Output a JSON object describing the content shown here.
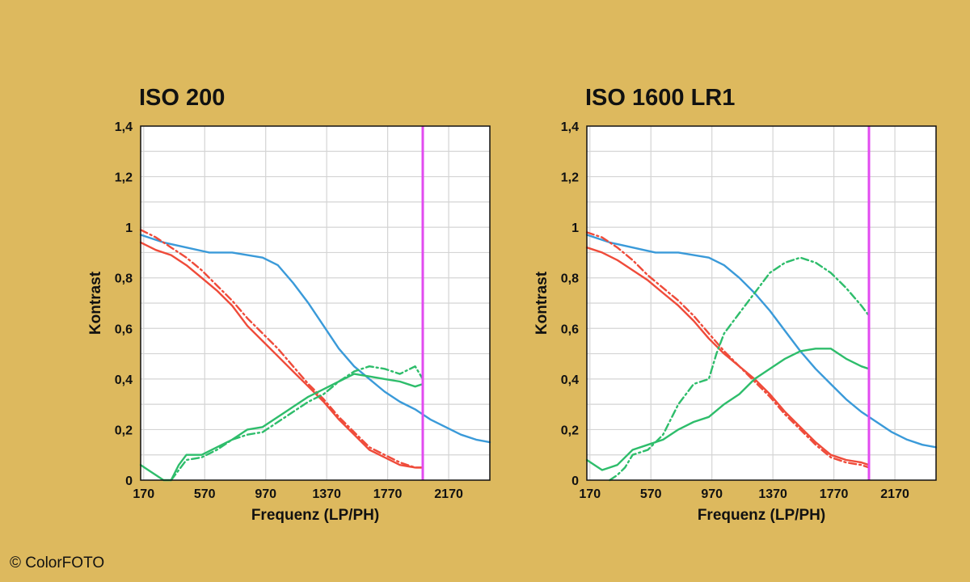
{
  "copyright": "© ColorFOTO",
  "colors": {
    "background": "#DDB95E",
    "plot_bg": "#FFFFFF",
    "grid": "#D4D4D4",
    "blue": "#3A9AD9",
    "red": "#EF4B3A",
    "green": "#2EBD6B",
    "marker": "#E24BF0"
  },
  "chart_data": [
    {
      "type": "line",
      "title": "ISO 200",
      "xlabel": "Frequenz (LP/PH)",
      "ylabel": "Kontrast",
      "xlim": [
        150,
        2440
      ],
      "ylim": [
        0,
        1.4
      ],
      "x_ticks": [
        "170",
        "570",
        "970",
        "1370",
        "1770",
        "2170"
      ],
      "y_ticks": [
        "0",
        "0,2",
        "0,4",
        "0,6",
        "0,8",
        "1",
        "1,2",
        "1,4"
      ],
      "grid": true,
      "marker_x": 2000,
      "series": [
        {
          "style": "solid",
          "color": "blue",
          "x": [
            150,
            300,
            450,
            600,
            750,
            850,
            950,
            1050,
            1150,
            1250,
            1350,
            1450,
            1550,
            1650,
            1750,
            1850,
            1950,
            2050,
            2150,
            2250,
            2350,
            2440
          ],
          "y": [
            0.97,
            0.94,
            0.92,
            0.9,
            0.9,
            0.89,
            0.88,
            0.85,
            0.78,
            0.7,
            0.61,
            0.52,
            0.45,
            0.4,
            0.35,
            0.31,
            0.28,
            0.24,
            0.21,
            0.18,
            0.16,
            0.15
          ]
        },
        {
          "style": "solid",
          "color": "red",
          "x": [
            150,
            250,
            350,
            450,
            550,
            650,
            750,
            850,
            950,
            1050,
            1150,
            1250,
            1350,
            1450,
            1550,
            1650,
            1750,
            1850,
            1950,
            2000
          ],
          "y": [
            0.94,
            0.91,
            0.89,
            0.85,
            0.8,
            0.75,
            0.69,
            0.61,
            0.55,
            0.49,
            0.43,
            0.37,
            0.31,
            0.24,
            0.18,
            0.12,
            0.09,
            0.06,
            0.05,
            0.05
          ]
        },
        {
          "style": "dashdot",
          "color": "red",
          "x": [
            150,
            250,
            350,
            450,
            550,
            650,
            750,
            850,
            950,
            1050,
            1150,
            1250,
            1350,
            1450,
            1550,
            1650,
            1750,
            1850,
            1950,
            2000
          ],
          "y": [
            0.99,
            0.96,
            0.92,
            0.88,
            0.83,
            0.77,
            0.71,
            0.64,
            0.58,
            0.52,
            0.45,
            0.38,
            0.32,
            0.25,
            0.19,
            0.13,
            0.1,
            0.07,
            0.05,
            0.05
          ]
        },
        {
          "style": "solid",
          "color": "green",
          "x": [
            150,
            200,
            250,
            300,
            350,
            400,
            450,
            550,
            650,
            750,
            850,
            950,
            1050,
            1150,
            1250,
            1350,
            1450,
            1550,
            1650,
            1750,
            1850,
            1950,
            2000
          ],
          "y": [
            0.06,
            0.04,
            0.02,
            0.0,
            0.0,
            0.06,
            0.1,
            0.1,
            0.13,
            0.16,
            0.2,
            0.21,
            0.25,
            0.29,
            0.33,
            0.36,
            0.39,
            0.42,
            0.41,
            0.4,
            0.39,
            0.37,
            0.38
          ]
        },
        {
          "style": "dashdot",
          "color": "green",
          "x": [
            350,
            400,
            450,
            550,
            650,
            750,
            850,
            950,
            1050,
            1150,
            1250,
            1350,
            1450,
            1550,
            1650,
            1750,
            1850,
            1950,
            2000
          ],
          "y": [
            0.0,
            0.04,
            0.08,
            0.09,
            0.12,
            0.16,
            0.18,
            0.19,
            0.23,
            0.27,
            0.31,
            0.34,
            0.39,
            0.43,
            0.45,
            0.44,
            0.42,
            0.45,
            0.4
          ]
        }
      ]
    },
    {
      "type": "line",
      "title": "ISO 1600 LR1",
      "xlabel": "Frequenz (LP/PH)",
      "ylabel": "Kontrast",
      "xlim": [
        150,
        2440
      ],
      "ylim": [
        0,
        1.4
      ],
      "x_ticks": [
        "170",
        "570",
        "970",
        "1370",
        "1770",
        "2170"
      ],
      "y_ticks": [
        "0",
        "0,2",
        "0,4",
        "0,6",
        "0,8",
        "1",
        "1,2",
        "1,4"
      ],
      "grid": true,
      "marker_x": 2000,
      "series": [
        {
          "style": "solid",
          "color": "blue",
          "x": [
            150,
            300,
            450,
            600,
            750,
            850,
            950,
            1050,
            1150,
            1250,
            1350,
            1450,
            1550,
            1650,
            1750,
            1850,
            1950,
            2050,
            2150,
            2250,
            2350,
            2440
          ],
          "y": [
            0.97,
            0.94,
            0.92,
            0.9,
            0.9,
            0.89,
            0.88,
            0.85,
            0.8,
            0.74,
            0.67,
            0.59,
            0.51,
            0.44,
            0.38,
            0.32,
            0.27,
            0.23,
            0.19,
            0.16,
            0.14,
            0.13
          ]
        },
        {
          "style": "solid",
          "color": "red",
          "x": [
            150,
            250,
            350,
            450,
            550,
            650,
            750,
            850,
            950,
            1050,
            1150,
            1250,
            1350,
            1450,
            1550,
            1650,
            1750,
            1850,
            1950,
            2000
          ],
          "y": [
            0.92,
            0.9,
            0.87,
            0.83,
            0.79,
            0.74,
            0.69,
            0.63,
            0.56,
            0.5,
            0.45,
            0.4,
            0.34,
            0.27,
            0.21,
            0.15,
            0.1,
            0.08,
            0.07,
            0.06
          ]
        },
        {
          "style": "dashdot",
          "color": "red",
          "x": [
            150,
            250,
            350,
            450,
            550,
            650,
            750,
            850,
            950,
            1050,
            1150,
            1250,
            1350,
            1450,
            1550,
            1650,
            1750,
            1850,
            1950,
            2000
          ],
          "y": [
            0.98,
            0.96,
            0.92,
            0.87,
            0.81,
            0.76,
            0.71,
            0.65,
            0.58,
            0.51,
            0.45,
            0.39,
            0.33,
            0.26,
            0.2,
            0.14,
            0.09,
            0.07,
            0.06,
            0.05
          ]
        },
        {
          "style": "solid",
          "color": "green",
          "x": [
            150,
            200,
            250,
            300,
            350,
            400,
            450,
            550,
            650,
            750,
            850,
            950,
            1050,
            1150,
            1250,
            1350,
            1450,
            1550,
            1650,
            1750,
            1850,
            1950,
            2000
          ],
          "y": [
            0.08,
            0.06,
            0.04,
            0.05,
            0.06,
            0.09,
            0.12,
            0.14,
            0.16,
            0.2,
            0.23,
            0.25,
            0.3,
            0.34,
            0.4,
            0.44,
            0.48,
            0.51,
            0.52,
            0.52,
            0.48,
            0.45,
            0.44
          ]
        },
        {
          "style": "dashdot",
          "color": "green",
          "x": [
            300,
            350,
            400,
            450,
            550,
            650,
            750,
            850,
            950,
            1000,
            1050,
            1150,
            1250,
            1350,
            1450,
            1550,
            1650,
            1750,
            1850,
            1950,
            2000
          ],
          "y": [
            0.0,
            0.02,
            0.05,
            0.1,
            0.12,
            0.18,
            0.3,
            0.38,
            0.4,
            0.5,
            0.58,
            0.66,
            0.74,
            0.82,
            0.86,
            0.88,
            0.86,
            0.82,
            0.76,
            0.69,
            0.65
          ]
        }
      ]
    }
  ]
}
